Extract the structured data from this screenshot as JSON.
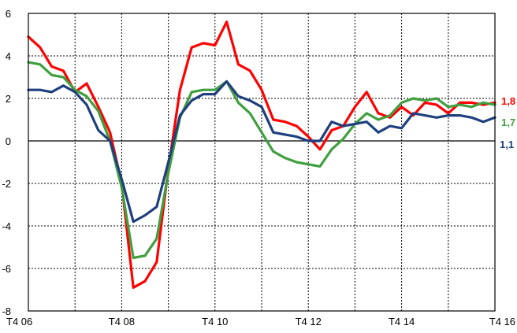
{
  "chart_data": {
    "type": "line",
    "title": "",
    "xlabel": "",
    "ylabel": "",
    "x_tick_labels": [
      "T4 06",
      "T4 08",
      "T4 10",
      "T4 12",
      "T4 14",
      "T4 16"
    ],
    "y_ticks": [
      -8,
      -6,
      -4,
      -2,
      0,
      2,
      4,
      6
    ],
    "ylim": [
      -8,
      6
    ],
    "grid": true,
    "series": [
      {
        "color": "#ff0000",
        "end_label": "1,8",
        "values": [
          4.9,
          4.4,
          3.5,
          3.3,
          2.3,
          2.7,
          1.6,
          0.4,
          -2.0,
          -6.9,
          -6.6,
          -5.7,
          -1.3,
          2.4,
          4.4,
          4.6,
          4.5,
          5.6,
          3.6,
          3.3,
          2.4,
          1.0,
          0.9,
          0.7,
          0.2,
          -0.4,
          0.5,
          0.7,
          1.6,
          2.3,
          1.3,
          1.1,
          1.6,
          1.2,
          1.8,
          1.7,
          1.3,
          1.8,
          1.8,
          1.7,
          1.8
        ]
      },
      {
        "color": "#3f9f3f",
        "end_label": "1,7",
        "values": [
          3.7,
          3.6,
          3.1,
          3.0,
          2.4,
          2.1,
          1.4,
          0.0,
          -2.2,
          -5.5,
          -5.4,
          -4.6,
          -1.5,
          1.1,
          2.3,
          2.4,
          2.4,
          2.8,
          1.8,
          1.3,
          0.4,
          -0.5,
          -0.8,
          -1.0,
          -1.1,
          -1.2,
          -0.4,
          0.1,
          0.8,
          1.3,
          1.0,
          1.2,
          1.8,
          2.0,
          1.9,
          2.0,
          1.6,
          1.7,
          1.6,
          1.8,
          1.7
        ]
      },
      {
        "color": "#1f3f7f",
        "end_label": "1,1",
        "values": [
          2.4,
          2.4,
          2.3,
          2.6,
          2.3,
          1.7,
          0.5,
          0.0,
          -1.8,
          -3.8,
          -3.5,
          -3.1,
          -1.0,
          1.2,
          1.9,
          2.2,
          2.2,
          2.8,
          2.1,
          1.9,
          1.6,
          0.4,
          0.3,
          0.2,
          0.0,
          0.0,
          0.9,
          0.7,
          0.8,
          0.9,
          0.4,
          0.7,
          0.6,
          1.3,
          1.2,
          1.1,
          1.2,
          1.2,
          1.1,
          0.9,
          1.1
        ]
      }
    ]
  }
}
